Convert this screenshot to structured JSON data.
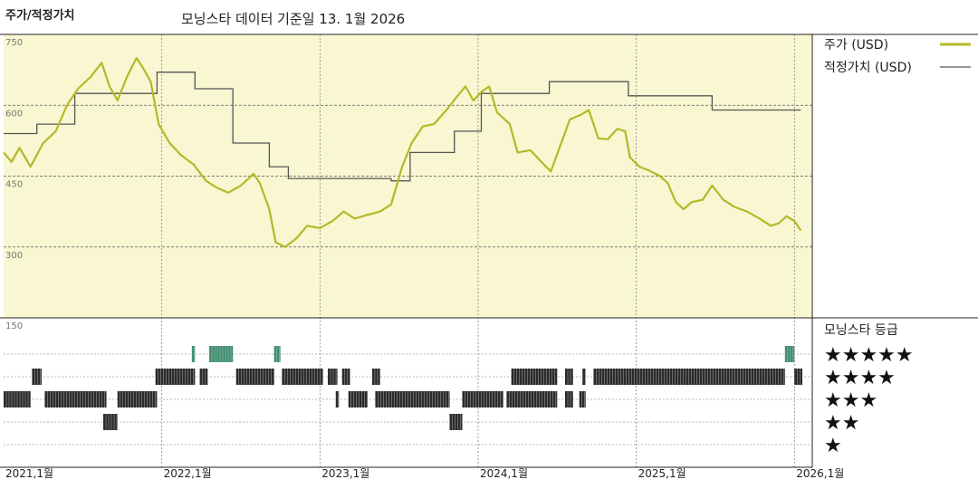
{
  "header": {
    "left_title": "주가/적정가치",
    "subtitle": "모닝스타 데이터 기준일 13. 1월 2026"
  },
  "colors": {
    "price": "#b5b828",
    "fair_value": "#555555",
    "plot_bg": "#f9f6d2",
    "bar_dark": "#2b2b2b",
    "bar_green": "#3f8f70"
  },
  "legend": {
    "price": "주가 (USD)",
    "fair_value": "적정가치 (USD)"
  },
  "rating_title": "모닝스타 등급",
  "stars": [
    "★★★★★",
    "★★★★",
    "★★★",
    "★★",
    "★"
  ],
  "chart_data": {
    "type": "line",
    "y_ticks": [
      "750",
      "600",
      "450",
      "300",
      "150"
    ],
    "ylim": [
      150,
      750
    ],
    "x_ticks": [
      "2021,1월",
      "2022,1월",
      "2023,1월",
      "2024,1월",
      "2025,1월",
      "2026,1월"
    ],
    "xlim": [
      2021.0,
      2026.05
    ],
    "series": [
      {
        "name": "주가 (USD)",
        "points": [
          [
            2021.0,
            500
          ],
          [
            2021.05,
            480
          ],
          [
            2021.1,
            510
          ],
          [
            2021.17,
            470
          ],
          [
            2021.25,
            520
          ],
          [
            2021.33,
            545
          ],
          [
            2021.4,
            600
          ],
          [
            2021.47,
            635
          ],
          [
            2021.55,
            660
          ],
          [
            2021.62,
            690
          ],
          [
            2021.67,
            640
          ],
          [
            2021.72,
            610
          ],
          [
            2021.78,
            660
          ],
          [
            2021.84,
            700
          ],
          [
            2021.88,
            680
          ],
          [
            2021.93,
            650
          ],
          [
            2021.98,
            560
          ],
          [
            2022.05,
            520
          ],
          [
            2022.12,
            495
          ],
          [
            2022.2,
            475
          ],
          [
            2022.28,
            440
          ],
          [
            2022.35,
            425
          ],
          [
            2022.42,
            415
          ],
          [
            2022.5,
            430
          ],
          [
            2022.58,
            455
          ],
          [
            2022.62,
            435
          ],
          [
            2022.68,
            380
          ],
          [
            2022.72,
            310
          ],
          [
            2022.78,
            300
          ],
          [
            2022.85,
            318
          ],
          [
            2022.92,
            345
          ],
          [
            2023.0,
            340
          ],
          [
            2023.08,
            355
          ],
          [
            2023.15,
            375
          ],
          [
            2023.22,
            360
          ],
          [
            2023.3,
            368
          ],
          [
            2023.38,
            375
          ],
          [
            2023.45,
            390
          ],
          [
            2023.52,
            470
          ],
          [
            2023.58,
            520
          ],
          [
            2023.65,
            555
          ],
          [
            2023.72,
            560
          ],
          [
            2023.8,
            590
          ],
          [
            2023.87,
            620
          ],
          [
            2023.92,
            640
          ],
          [
            2023.97,
            610
          ],
          [
            2024.02,
            628
          ],
          [
            2024.07,
            640
          ],
          [
            2024.12,
            585
          ],
          [
            2024.2,
            560
          ],
          [
            2024.25,
            500
          ],
          [
            2024.33,
            505
          ],
          [
            2024.4,
            480
          ],
          [
            2024.46,
            460
          ],
          [
            2024.52,
            515
          ],
          [
            2024.58,
            570
          ],
          [
            2024.65,
            580
          ],
          [
            2024.7,
            590
          ],
          [
            2024.76,
            530
          ],
          [
            2024.82,
            528
          ],
          [
            2024.88,
            550
          ],
          [
            2024.93,
            545
          ],
          [
            2024.96,
            490
          ],
          [
            2025.02,
            470
          ],
          [
            2025.08,
            462
          ],
          [
            2025.15,
            450
          ],
          [
            2025.2,
            435
          ],
          [
            2025.25,
            395
          ],
          [
            2025.3,
            380
          ],
          [
            2025.35,
            395
          ],
          [
            2025.42,
            400
          ],
          [
            2025.48,
            430
          ],
          [
            2025.55,
            400
          ],
          [
            2025.62,
            385
          ],
          [
            2025.7,
            375
          ],
          [
            2025.78,
            360
          ],
          [
            2025.85,
            345
          ],
          [
            2025.9,
            350
          ],
          [
            2025.95,
            365
          ],
          [
            2026.0,
            355
          ],
          [
            2026.04,
            335
          ]
        ]
      },
      {
        "name": "적정가치 (USD)",
        "step": [
          [
            2021.0,
            540
          ],
          [
            2021.21,
            560
          ],
          [
            2021.45,
            625
          ],
          [
            2021.97,
            670
          ],
          [
            2022.21,
            635
          ],
          [
            2022.45,
            520
          ],
          [
            2022.68,
            470
          ],
          [
            2022.8,
            445
          ],
          [
            2023.45,
            440
          ],
          [
            2023.57,
            500
          ],
          [
            2023.85,
            545
          ],
          [
            2024.02,
            625
          ],
          [
            2024.45,
            650
          ],
          [
            2024.95,
            620
          ],
          [
            2025.48,
            590
          ],
          [
            2026.04,
            590
          ]
        ]
      }
    ],
    "ratings": [
      {
        "label": "★★★★★",
        "segments": [
          [
            2022.19,
            2022.21
          ],
          [
            2022.3,
            2022.45
          ],
          [
            2022.71,
            2022.75
          ],
          [
            2025.94,
            2026.0
          ]
        ]
      },
      {
        "label": "★★★★",
        "segments": [
          [
            2021.18,
            2021.24
          ],
          [
            2021.96,
            2022.21
          ],
          [
            2022.24,
            2022.29
          ],
          [
            2022.47,
            2022.71
          ],
          [
            2022.76,
            2023.02
          ],
          [
            2023.05,
            2023.11
          ],
          [
            2023.14,
            2023.19
          ],
          [
            2023.33,
            2023.38
          ],
          [
            2024.21,
            2024.5
          ],
          [
            2024.55,
            2024.6
          ],
          [
            2024.66,
            2024.68
          ],
          [
            2024.73,
            2025.94
          ],
          [
            2026.0,
            2026.05
          ]
        ]
      },
      {
        "label": "★★★",
        "segments": [
          [
            2021.0,
            2021.17
          ],
          [
            2021.26,
            2021.65
          ],
          [
            2021.72,
            2021.97
          ],
          [
            2023.1,
            2023.12
          ],
          [
            2023.18,
            2023.3
          ],
          [
            2023.35,
            2023.82
          ],
          [
            2023.9,
            2024.16
          ],
          [
            2024.18,
            2024.5
          ],
          [
            2024.55,
            2024.6
          ],
          [
            2024.64,
            2024.68
          ]
        ]
      },
      {
        "label": "★★",
        "segments": [
          [
            2021.63,
            2021.72
          ],
          [
            2023.82,
            2023.9
          ]
        ]
      }
    ]
  }
}
